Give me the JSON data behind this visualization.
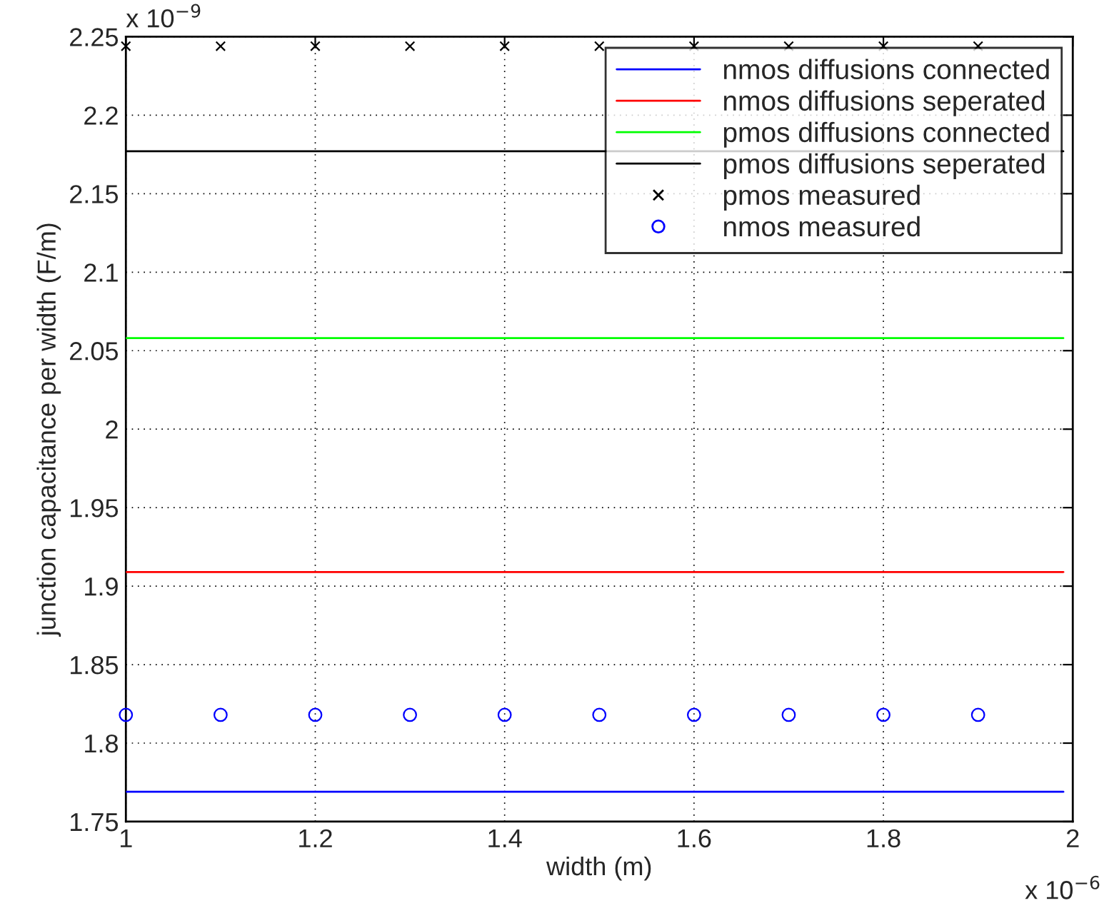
{
  "chart_data": {
    "type": "line",
    "xlabel": "width (m)",
    "ylabel": "junction capacitance per width (F/m)",
    "xlim": [
      1,
      2
    ],
    "xticks": [
      1,
      1.2,
      1.4,
      1.6,
      1.8,
      2
    ],
    "ylim": [
      1.75,
      2.25
    ],
    "yticks": [
      1.75,
      1.8,
      1.85,
      1.9,
      1.95,
      2,
      2.05,
      2.1,
      2.15,
      2.2,
      2.25
    ],
    "grid": true,
    "legend": "top right",
    "annotations": [
      "x 10$^{−9}$",
      "x 10$^{−6}$"
    ],
    "series": [
      {
        "name": "nmos diffusions connected",
        "color": "#0000ff",
        "x": [
          1,
          1.99
        ],
        "values": [
          1.769,
          1.769
        ]
      },
      {
        "name": "nmos diffusions seperated",
        "color": "#ff0000",
        "x": [
          1,
          1.99
        ],
        "values": [
          1.909,
          1.909
        ]
      },
      {
        "name": "pmos diffusions connected",
        "color": "#00ff00",
        "x": [
          1,
          1.99
        ],
        "values": [
          2.058,
          2.058
        ]
      },
      {
        "name": "pmos diffusions seperated",
        "color": "#000000",
        "x": [
          1,
          1.99
        ],
        "values": [
          2.177,
          2.177
        ]
      },
      {
        "name": "pmos measured",
        "type": "scatter",
        "color": "#000000",
        "marker": "cross",
        "x": [
          1,
          1.1,
          1.2,
          1.3,
          1.4,
          1.5,
          1.6,
          1.7,
          1.8,
          1.9
        ],
        "values": [
          2.244,
          2.244,
          2.244,
          2.244,
          2.244,
          2.244,
          2.244,
          2.244,
          2.244,
          2.244
        ]
      },
      {
        "name": "nmos measured",
        "type": "scatter",
        "color": "#0000ff",
        "marker": "circle",
        "x": [
          1,
          1.1,
          1.2,
          1.3,
          1.4,
          1.5,
          1.6,
          1.7,
          1.8,
          1.9
        ],
        "values": [
          1.818,
          1.818,
          1.818,
          1.818,
          1.818,
          1.818,
          1.818,
          1.818,
          1.818,
          1.818
        ]
      }
    ]
  }
}
